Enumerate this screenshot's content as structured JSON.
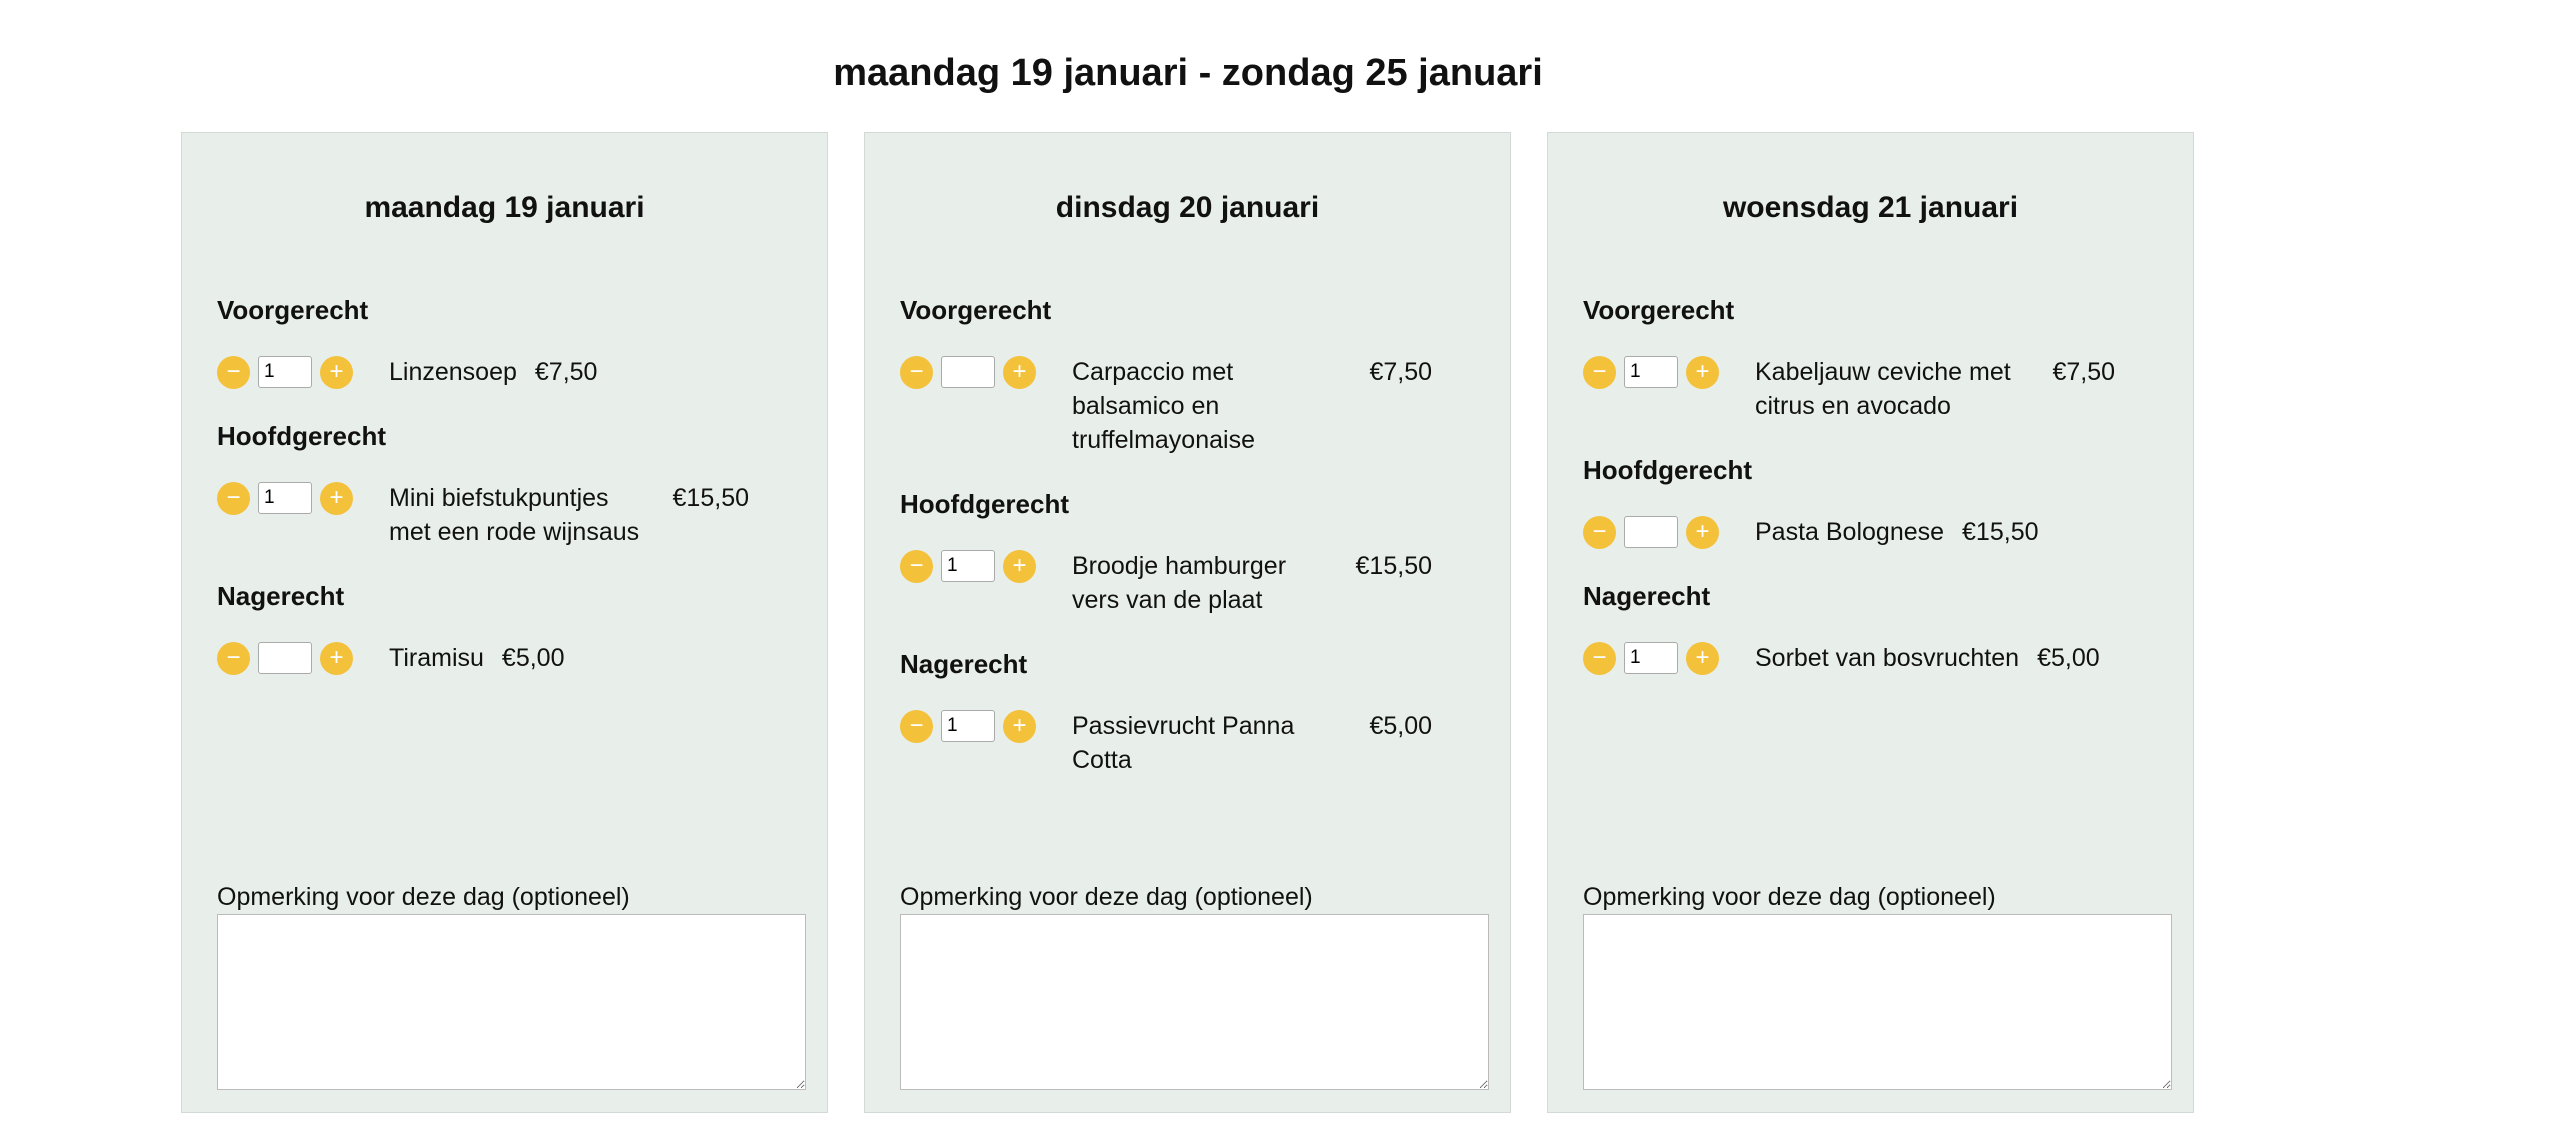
{
  "week_title": "maandag 19 januari - zondag 25 januari",
  "accent_color": "#f3c13a",
  "card_background": "#e8eeea",
  "stepper": {
    "minus": "−",
    "plus": "+"
  },
  "remark_label": "Opmerking voor deze dag (optioneel)",
  "days": [
    {
      "title": "maandag 19 januari",
      "sections": [
        {
          "title": "Voorgerecht",
          "dish": "Linzensoep",
          "price": "€7,50",
          "qty": "1"
        },
        {
          "title": "Hoofdgerecht",
          "dish": "Mini biefstukpuntjes met een rode wijnsaus",
          "price": "€15,50",
          "qty": "1"
        },
        {
          "title": "Nagerecht",
          "dish": "Tiramisu",
          "price": "€5,00",
          "qty": ""
        }
      ]
    },
    {
      "title": "dinsdag 20 januari",
      "sections": [
        {
          "title": "Voorgerecht",
          "dish": "Carpaccio met balsamico en truffelmayonaise",
          "price": "€7,50",
          "qty": ""
        },
        {
          "title": "Hoofdgerecht",
          "dish": "Broodje hamburger vers van de plaat",
          "price": "€15,50",
          "qty": "1"
        },
        {
          "title": "Nagerecht",
          "dish": "Passievrucht Panna Cotta",
          "price": "€5,00",
          "qty": "1"
        }
      ]
    },
    {
      "title": "woensdag 21 januari",
      "sections": [
        {
          "title": "Voorgerecht",
          "dish": "Kabeljauw ceviche met citrus en avocado",
          "price": "€7,50",
          "qty": "1"
        },
        {
          "title": "Hoofdgerecht",
          "dish": "Pasta Bolognese",
          "price": "€15,50",
          "qty": ""
        },
        {
          "title": "Nagerecht",
          "dish": "Sorbet van bosvruchten",
          "price": "€5,00",
          "qty": "1"
        }
      ]
    }
  ]
}
